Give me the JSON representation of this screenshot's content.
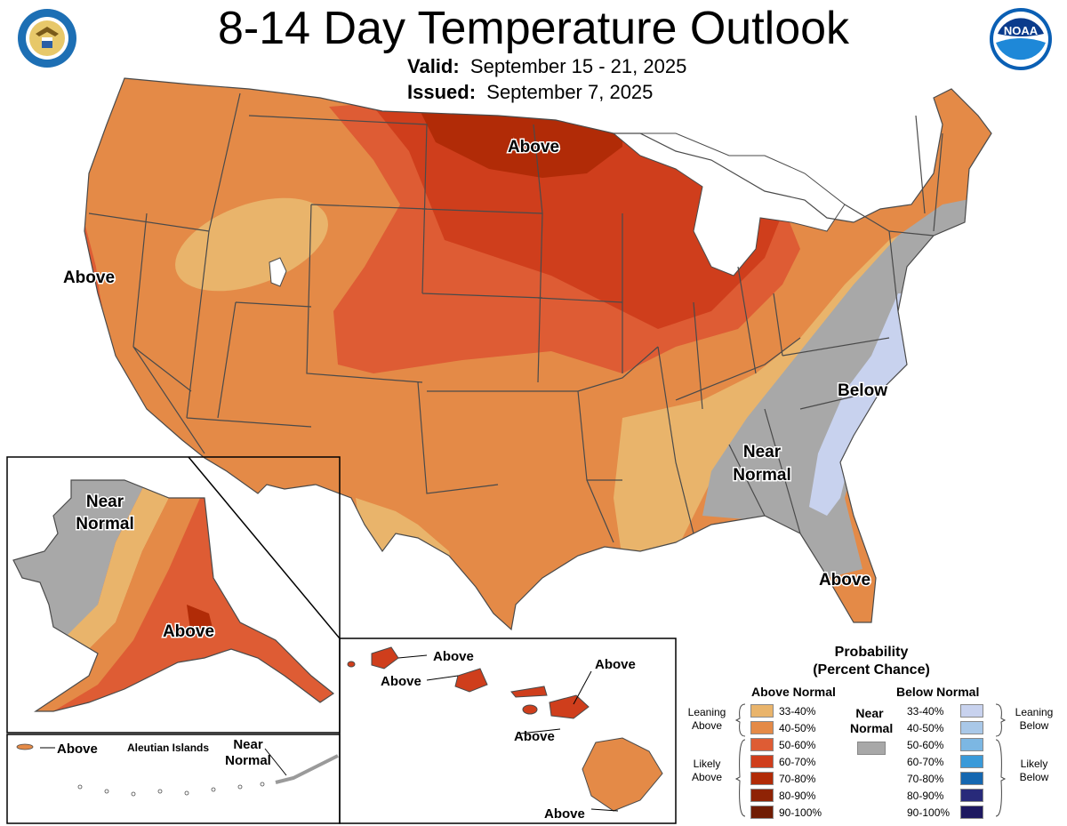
{
  "header": {
    "title": "8-14 Day Temperature Outlook",
    "valid_label": "Valid:",
    "valid_value": "September 15 - 21, 2025",
    "issued_label": "Issued:",
    "issued_value": "September 7, 2025"
  },
  "logos": {
    "left": "department-of-commerce-seal-icon",
    "right": "noaa-logo-icon",
    "noaa_text": "NOAA"
  },
  "map_labels": {
    "north_central": "Above",
    "west_coast": "Above",
    "southeast_below": "Below",
    "southeast_near": [
      "Near",
      "Normal"
    ],
    "florida": "Above",
    "alaska_near": [
      "Near",
      "Normal"
    ],
    "alaska_above": "Above",
    "aleutian_title": "Aleutian Islands",
    "aleutian_above": "Above",
    "aleutian_near": [
      "Near",
      "Normal"
    ],
    "hawaii_1": "Above",
    "hawaii_2": "Above",
    "hawaii_3": "Above",
    "hawaii_4": "Above",
    "hawaii_5": "Above"
  },
  "colors": {
    "above_33_40": "#e9b46b",
    "above_40_50": "#e48a47",
    "above_50_60": "#de5c34",
    "above_60_70": "#cf3e1c",
    "above_70_80": "#b12b07",
    "above_80_90": "#8f2305",
    "above_90_100": "#701c03",
    "near_normal": "#a8a8a8",
    "below_33_40": "#c8d2ee",
    "below_40_50": "#a9c8e8",
    "below_50_60": "#7cb7e3",
    "below_60_70": "#3a9ad9",
    "below_70_80": "#1567b0",
    "below_80_90": "#282a7a",
    "below_90_100": "#1d1860",
    "border": "#4a4a4a"
  },
  "legend": {
    "title_line1": "Probability",
    "title_line2": "(Percent Chance)",
    "above_header": "Above Normal",
    "below_header": "Below Normal",
    "near_label_1": "Near",
    "near_label_2": "Normal",
    "leaning_above": [
      "Leaning",
      "Above"
    ],
    "likely_above": [
      "Likely",
      "Above"
    ],
    "leaning_below": [
      "Leaning",
      "Below"
    ],
    "likely_below": [
      "Likely",
      "Below"
    ],
    "above_pcts": [
      "33-40%",
      "40-50%",
      "50-60%",
      "60-70%",
      "70-80%",
      "80-90%",
      "90-100%"
    ],
    "below_pcts": [
      "33-40%",
      "40-50%",
      "50-60%",
      "60-70%",
      "70-80%",
      "80-90%",
      "90-100%"
    ]
  }
}
